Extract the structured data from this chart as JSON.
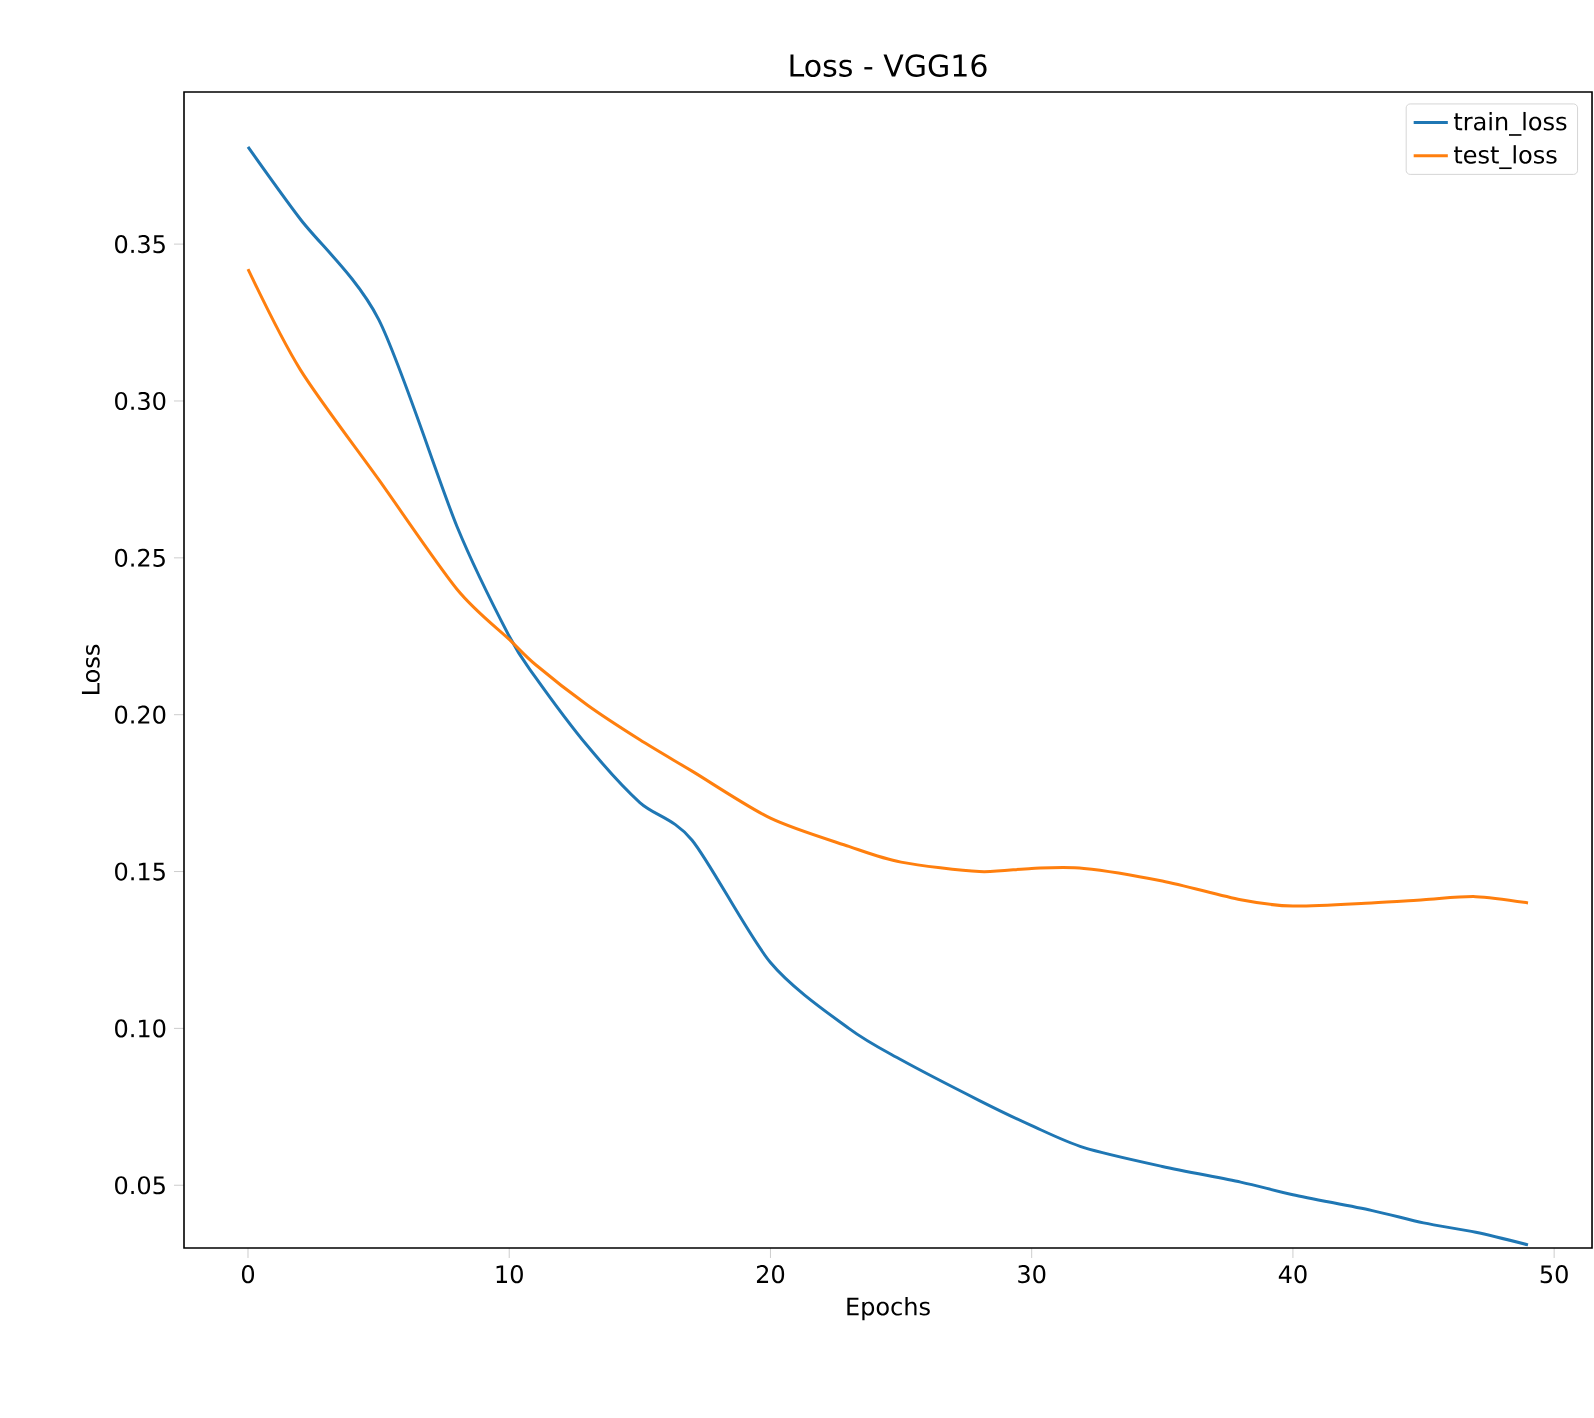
{
  "chart_data": {
    "type": "line",
    "title": "Loss - VGG16",
    "xlabel": "Epochs",
    "ylabel": "Loss",
    "x": [
      0,
      2,
      5,
      8,
      10,
      11,
      13,
      15,
      17,
      20,
      23,
      25,
      28,
      30,
      32,
      35,
      38,
      40,
      43,
      45,
      47,
      49
    ],
    "series": [
      {
        "name": "train_loss",
        "color": "#1f77b4",
        "values": [
          0.381,
          0.358,
          0.326,
          0.26,
          0.225,
          0.212,
          0.19,
          0.172,
          0.16,
          0.121,
          0.1,
          0.09,
          0.077,
          0.069,
          0.062,
          0.056,
          0.051,
          0.047,
          0.042,
          0.038,
          0.035,
          0.031
        ]
      },
      {
        "name": "test_loss",
        "color": "#ff7f0e",
        "values": [
          0.342,
          0.31,
          0.275,
          0.24,
          0.224,
          0.216,
          0.203,
          0.192,
          0.182,
          0.167,
          0.158,
          0.153,
          0.15,
          0.151,
          0.151,
          0.147,
          0.141,
          0.139,
          0.14,
          0.141,
          0.142,
          0.14
        ]
      }
    ],
    "xlim": [
      -2.45,
      51.45
    ],
    "ylim": [
      0.03,
      0.3985
    ],
    "xticks": [
      0,
      10,
      20,
      30,
      40,
      50
    ],
    "yticks": [
      0.05,
      {
        "value": 0.1,
        "label": "0.10"
      },
      0.15,
      {
        "value": 0.2,
        "label": "0.20"
      },
      0.25,
      {
        "value": 0.3,
        "label": "0.30"
      },
      0.35
    ],
    "legend": "top right",
    "grid": false,
    "marker": "none",
    "line_style": "solid"
  }
}
